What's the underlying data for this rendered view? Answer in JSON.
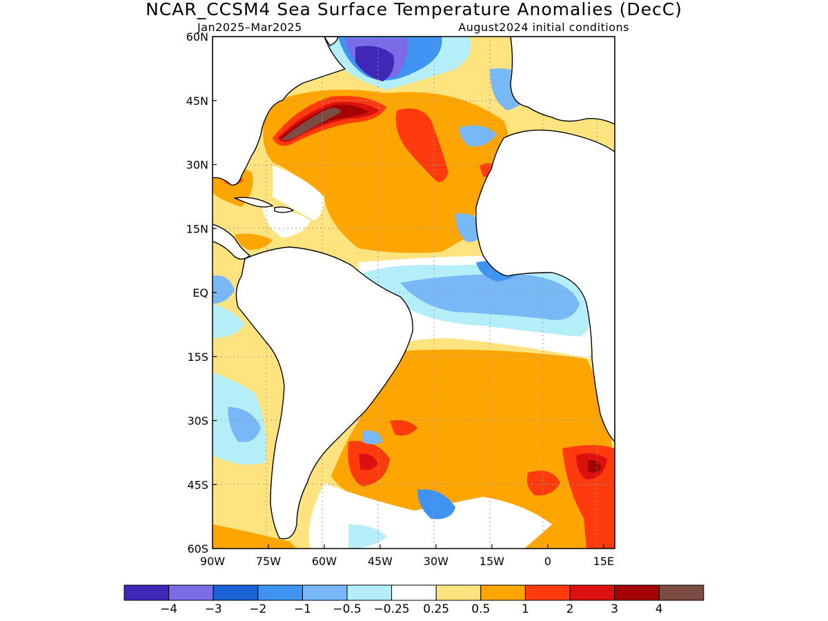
{
  "title": "NCAR_CCSM4 Sea Surface Temperature Anomalies (DecC)",
  "subtitle_left": "Jan2025–Mar2025",
  "subtitle_right": "August2024 initial conditions",
  "map": {
    "lon_range": [
      -90,
      18
    ],
    "lat_range": [
      -60,
      60
    ],
    "grid": true,
    "lat_ticks": [
      {
        "value": 60,
        "label": "60N"
      },
      {
        "value": 45,
        "label": "45N"
      },
      {
        "value": 30,
        "label": "30N"
      },
      {
        "value": 15,
        "label": "15N"
      },
      {
        "value": 0,
        "label": "EQ"
      },
      {
        "value": -15,
        "label": "15S"
      },
      {
        "value": -30,
        "label": "30S"
      },
      {
        "value": -45,
        "label": "45S"
      },
      {
        "value": -60,
        "label": "60S"
      }
    ],
    "lon_ticks": [
      {
        "value": -90,
        "label": "90W"
      },
      {
        "value": -75,
        "label": "75W"
      },
      {
        "value": -60,
        "label": "60W"
      },
      {
        "value": -45,
        "label": "45W"
      },
      {
        "value": -30,
        "label": "30W"
      },
      {
        "value": -15,
        "label": "15W"
      },
      {
        "value": 0,
        "label": "0"
      },
      {
        "value": 15,
        "label": "15E"
      }
    ]
  },
  "colorbar": {
    "colors": [
      "#3f28b8",
      "#7c6be6",
      "#1a63d6",
      "#3f93f2",
      "#78b8f6",
      "#b4eef8",
      "#ffffff",
      "#ffe37f",
      "#ffa500",
      "#ff3a0d",
      "#dd1010",
      "#a40303",
      "#7b4d42"
    ],
    "labels": [
      "−4",
      "−3",
      "−2",
      "−1",
      "−0.5",
      "−0.25",
      "0.25",
      "0.5",
      "1",
      "2",
      "3",
      "4"
    ]
  }
}
